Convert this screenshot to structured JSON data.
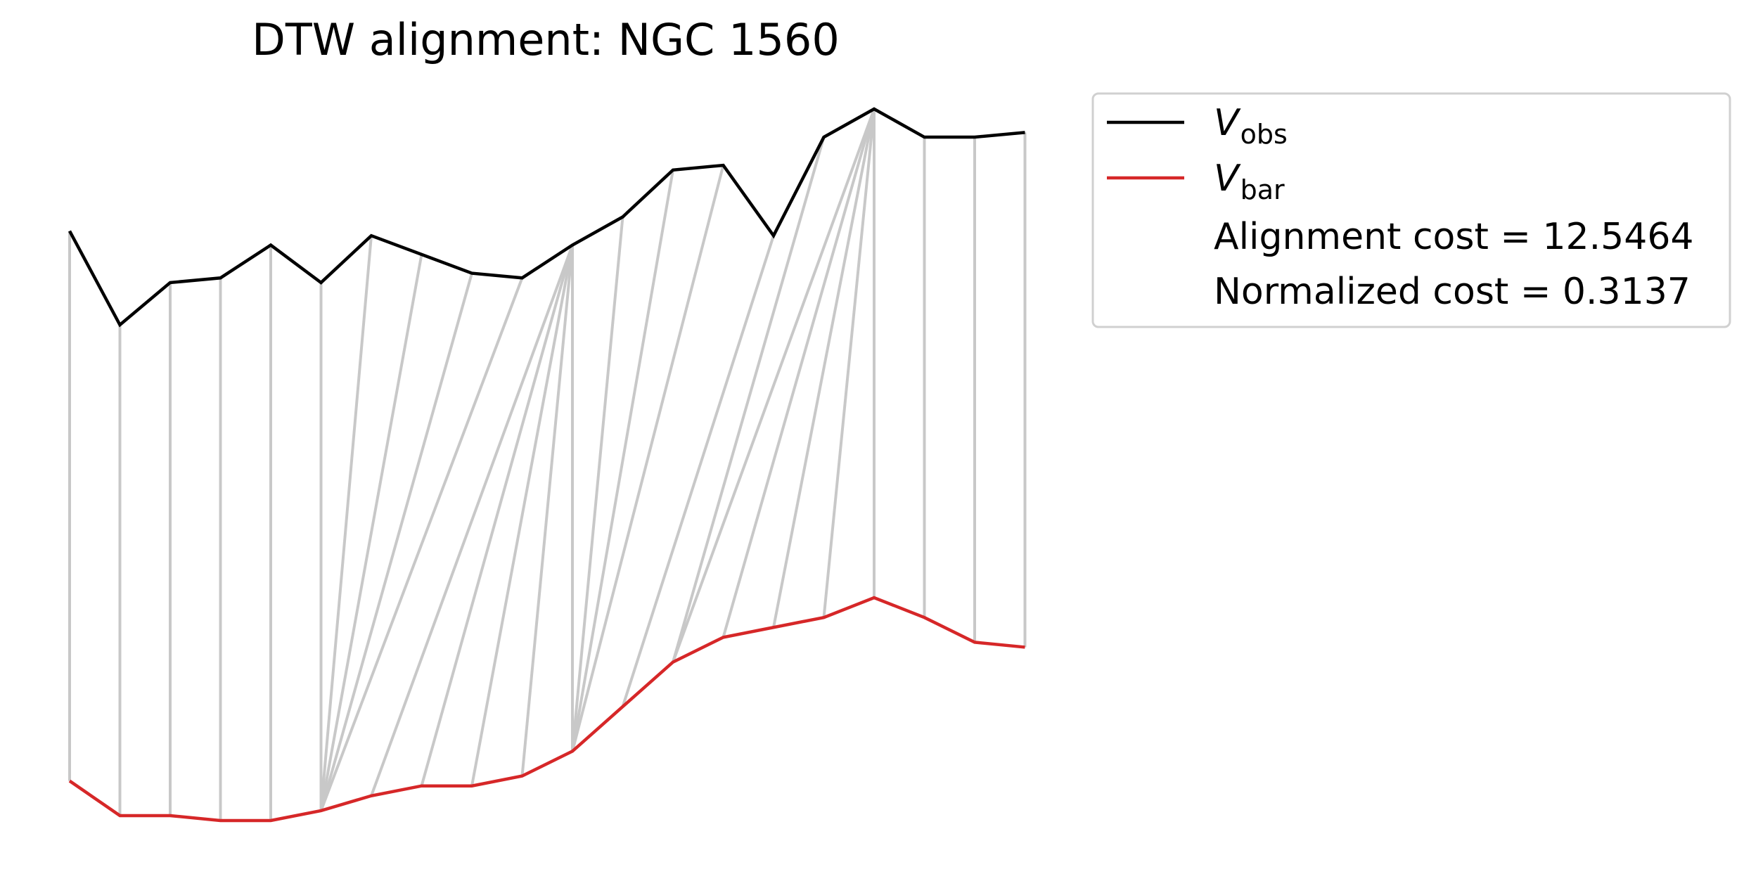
{
  "chart_data": {
    "type": "line",
    "title": "DTW alignment: NGC 1560",
    "grid": false,
    "axes_visible": false,
    "legend_position": "upper right, outside plot",
    "colors": {
      "obs": "#000000",
      "bar": "#d62728",
      "connector": "#c8c8c8"
    },
    "series": [
      {
        "key": "obs",
        "legend_symbol": "V",
        "legend_subscript": "obs",
        "values": [
          0.2,
          0.0,
          0.09,
          0.1,
          0.17,
          0.09,
          0.19,
          0.15,
          0.11,
          0.1,
          0.17,
          0.23,
          0.33,
          0.34,
          0.19,
          0.4,
          0.46,
          0.4,
          0.4,
          0.41
        ]
      },
      {
        "key": "bar",
        "legend_symbol": "V",
        "legend_subscript": "bar",
        "values": [
          0.09,
          0.02,
          0.02,
          0.01,
          0.01,
          0.03,
          0.06,
          0.08,
          0.08,
          0.1,
          0.15,
          0.24,
          0.33,
          0.38,
          0.4,
          0.42,
          0.46,
          0.42,
          0.37,
          0.36
        ]
      }
    ],
    "alignment_path": [
      [
        0,
        0
      ],
      [
        1,
        1
      ],
      [
        2,
        2
      ],
      [
        3,
        3
      ],
      [
        4,
        4
      ],
      [
        5,
        5
      ],
      [
        6,
        5
      ],
      [
        7,
        5
      ],
      [
        8,
        5
      ],
      [
        9,
        5
      ],
      [
        10,
        6
      ],
      [
        10,
        7
      ],
      [
        10,
        8
      ],
      [
        10,
        9
      ],
      [
        10,
        10
      ],
      [
        11,
        10
      ],
      [
        12,
        10
      ],
      [
        13,
        10
      ],
      [
        14,
        11
      ],
      [
        15,
        12
      ],
      [
        16,
        12
      ],
      [
        16,
        13
      ],
      [
        16,
        14
      ],
      [
        16,
        15
      ],
      [
        16,
        16
      ],
      [
        17,
        17
      ],
      [
        18,
        18
      ],
      [
        19,
        19
      ]
    ],
    "annotations": [
      "Alignment cost = 12.5464",
      "Normalized cost = 0.3137"
    ]
  }
}
